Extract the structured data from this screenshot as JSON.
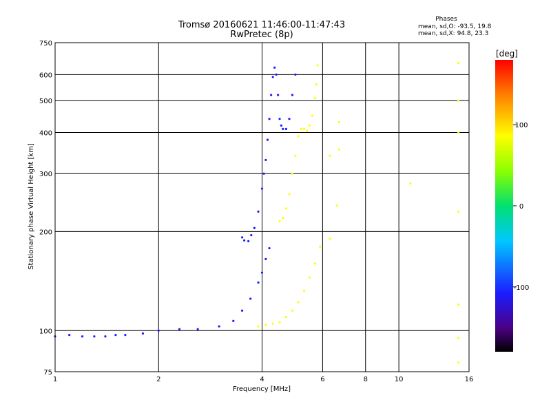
{
  "chart_data": {
    "type": "scatter",
    "title": "Tromsø 20160621 11:46:00-11:47:43",
    "subtitle": "RwPretec (8p)",
    "xlabel": "Frequency [MHz]",
    "ylabel": "Stationary phase Virtual Height [km]",
    "x_scale": "log",
    "y_scale": "log",
    "xlim": [
      1,
      16
    ],
    "ylim": [
      75,
      750
    ],
    "x_ticks": [
      "1",
      "2",
      "4",
      "6",
      "8",
      "10",
      "16"
    ],
    "x_tick_values": [
      1,
      2,
      4,
      6,
      8,
      10,
      16
    ],
    "y_ticks": [
      "750",
      "600",
      "500",
      "400",
      "300",
      "200",
      "100",
      "75"
    ],
    "y_tick_values": [
      750,
      600,
      500,
      400,
      300,
      200,
      100,
      75
    ],
    "grid": true,
    "phases_info": {
      "heading": "Phases",
      "line_o": "mean, sd,O: -93.5, 19.8",
      "line_x": "mean, sd,X:  94.8, 23.3"
    },
    "colorbar": {
      "label": "[deg]",
      "range": [
        -180,
        180
      ],
      "ticks": [
        "100",
        "0",
        "-100"
      ],
      "tick_values": [
        100,
        0,
        -100
      ]
    },
    "traces": [
      {
        "name": "",
        "points": [
          [
            1.0,
            96
          ],
          [
            1.1,
            97
          ],
          [
            1.2,
            96
          ],
          [
            1.3,
            96
          ],
          [
            1.4,
            96
          ],
          [
            1.5,
            97
          ],
          [
            1.6,
            97
          ],
          [
            1.8,
            98
          ],
          [
            2.0,
            100
          ],
          [
            2.3,
            101
          ],
          [
            2.6,
            101
          ],
          [
            3.0,
            103
          ],
          [
            3.3,
            107
          ],
          [
            3.5,
            115
          ],
          [
            3.7,
            125
          ],
          [
            3.9,
            140
          ],
          [
            4.0,
            150
          ],
          [
            4.1,
            165
          ],
          [
            4.2,
            178
          ]
        ],
        "phase": -90
      },
      {
        "name": "",
        "points": [
          [
            3.5,
            192
          ],
          [
            3.55,
            188
          ],
          [
            3.65,
            187
          ],
          [
            3.72,
            195
          ],
          [
            3.8,
            205
          ],
          [
            3.9,
            230
          ],
          [
            4.0,
            270
          ],
          [
            4.05,
            300
          ],
          [
            4.1,
            330
          ],
          [
            4.15,
            380
          ],
          [
            4.2,
            440
          ],
          [
            4.25,
            520
          ],
          [
            4.3,
            590
          ],
          [
            4.35,
            630
          ],
          [
            4.4,
            600
          ],
          [
            4.45,
            520
          ],
          [
            4.5,
            440
          ],
          [
            4.55,
            420
          ],
          [
            4.6,
            410
          ],
          [
            4.7,
            410
          ],
          [
            4.8,
            440
          ],
          [
            4.9,
            520
          ],
          [
            5.0,
            600
          ]
        ],
        "phase": -95
      },
      {
        "name": "",
        "points": [
          [
            4.5,
            215
          ],
          [
            4.6,
            220
          ],
          [
            4.7,
            235
          ],
          [
            4.8,
            260
          ],
          [
            4.9,
            300
          ],
          [
            5.0,
            340
          ],
          [
            5.1,
            390
          ],
          [
            5.2,
            410
          ],
          [
            5.3,
            410
          ],
          [
            5.4,
            405
          ],
          [
            5.5,
            420
          ],
          [
            5.6,
            450
          ],
          [
            5.7,
            510
          ],
          [
            5.75,
            560
          ],
          [
            5.8,
            640
          ]
        ],
        "phase": 95
      },
      {
        "name": "",
        "points": [
          [
            3.9,
            103
          ],
          [
            4.1,
            104
          ],
          [
            4.3,
            105
          ],
          [
            4.5,
            106
          ],
          [
            4.7,
            110
          ],
          [
            4.9,
            115
          ],
          [
            5.1,
            122
          ],
          [
            5.3,
            132
          ],
          [
            5.5,
            145
          ],
          [
            5.7,
            160
          ],
          [
            5.9,
            180
          ]
        ],
        "phase": 90
      },
      {
        "name": "",
        "points": [
          [
            6.3,
            340
          ],
          [
            6.3,
            190
          ],
          [
            6.6,
            240
          ],
          [
            6.7,
            430
          ],
          [
            6.7,
            355
          ],
          [
            10.8,
            280
          ],
          [
            14.9,
            650
          ],
          [
            14.9,
            500
          ],
          [
            14.9,
            400
          ],
          [
            14.9,
            230
          ],
          [
            14.9,
            120
          ],
          [
            14.9,
            95
          ],
          [
            14.9,
            80
          ]
        ],
        "phase": 100
      }
    ]
  }
}
